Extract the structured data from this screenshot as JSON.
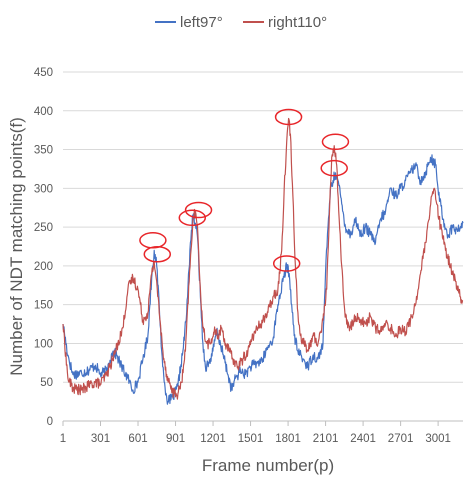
{
  "chart_data": {
    "type": "line",
    "title": "",
    "xlabel": "Frame number(p)",
    "ylabel": "Number of NDT matching points(f)",
    "xlim": [
      1,
      3200
    ],
    "ylim": [
      0,
      450
    ],
    "x_ticks": [
      "1",
      "301",
      "601",
      "901",
      "1201",
      "1501",
      "1801",
      "2101",
      "2401",
      "2701",
      "3001"
    ],
    "y_ticks": [
      "0",
      "50",
      "100",
      "150",
      "200",
      "250",
      "300",
      "350",
      "400",
      "450"
    ],
    "grid": true,
    "legend": "top",
    "series": [
      {
        "name": "left97°",
        "color": "#4472C4",
        "points": [
          [
            1,
            125
          ],
          [
            40,
            85
          ],
          [
            80,
            60
          ],
          [
            150,
            62
          ],
          [
            200,
            65
          ],
          [
            260,
            72
          ],
          [
            300,
            60
          ],
          [
            350,
            65
          ],
          [
            400,
            90
          ],
          [
            430,
            85
          ],
          [
            470,
            70
          ],
          [
            520,
            55
          ],
          [
            560,
            40
          ],
          [
            600,
            50
          ],
          [
            640,
            80
          ],
          [
            680,
            110
          ],
          [
            710,
            185
          ],
          [
            730,
            220
          ],
          [
            750,
            200
          ],
          [
            770,
            150
          ],
          [
            790,
            90
          ],
          [
            810,
            50
          ],
          [
            840,
            25
          ],
          [
            880,
            30
          ],
          [
            920,
            45
          ],
          [
            960,
            90
          ],
          [
            990,
            140
          ],
          [
            1020,
            230
          ],
          [
            1040,
            265
          ],
          [
            1060,
            255
          ],
          [
            1080,
            230
          ],
          [
            1100,
            160
          ],
          [
            1120,
            100
          ],
          [
            1140,
            70
          ],
          [
            1170,
            75
          ],
          [
            1200,
            90
          ],
          [
            1230,
            115
          ],
          [
            1260,
            100
          ],
          [
            1290,
            80
          ],
          [
            1320,
            60
          ],
          [
            1350,
            40
          ],
          [
            1380,
            55
          ],
          [
            1420,
            65
          ],
          [
            1460,
            60
          ],
          [
            1500,
            70
          ],
          [
            1560,
            75
          ],
          [
            1600,
            80
          ],
          [
            1640,
            95
          ],
          [
            1680,
            105
          ],
          [
            1720,
            150
          ],
          [
            1760,
            180
          ],
          [
            1790,
            200
          ],
          [
            1810,
            190
          ],
          [
            1830,
            150
          ],
          [
            1850,
            110
          ],
          [
            1880,
            90
          ],
          [
            1920,
            80
          ],
          [
            1960,
            70
          ],
          [
            2000,
            85
          ],
          [
            2040,
            80
          ],
          [
            2080,
            100
          ],
          [
            2100,
            190
          ],
          [
            2120,
            250
          ],
          [
            2140,
            300
          ],
          [
            2160,
            310
          ],
          [
            2180,
            320
          ],
          [
            2200,
            310
          ],
          [
            2230,
            280
          ],
          [
            2260,
            250
          ],
          [
            2300,
            240
          ],
          [
            2340,
            260
          ],
          [
            2380,
            240
          ],
          [
            2420,
            250
          ],
          [
            2460,
            240
          ],
          [
            2500,
            230
          ],
          [
            2540,
            260
          ],
          [
            2580,
            270
          ],
          [
            2620,
            300
          ],
          [
            2660,
            290
          ],
          [
            2700,
            300
          ],
          [
            2740,
            310
          ],
          [
            2780,
            320
          ],
          [
            2820,
            330
          ],
          [
            2860,
            310
          ],
          [
            2900,
            320
          ],
          [
            2940,
            340
          ],
          [
            2980,
            330
          ],
          [
            3000,
            300
          ],
          [
            3040,
            260
          ],
          [
            3080,
            240
          ],
          [
            3120,
            250
          ],
          [
            3160,
            245
          ],
          [
            3200,
            255
          ]
        ]
      },
      {
        "name": "right110°",
        "color": "#C0504D",
        "points": [
          [
            1,
            125
          ],
          [
            40,
            55
          ],
          [
            80,
            42
          ],
          [
            150,
            40
          ],
          [
            200,
            45
          ],
          [
            260,
            50
          ],
          [
            300,
            48
          ],
          [
            350,
            60
          ],
          [
            400,
            80
          ],
          [
            440,
            100
          ],
          [
            480,
            120
          ],
          [
            520,
            170
          ],
          [
            560,
            185
          ],
          [
            600,
            170
          ],
          [
            640,
            130
          ],
          [
            680,
            140
          ],
          [
            710,
            190
          ],
          [
            730,
            205
          ],
          [
            750,
            180
          ],
          [
            770,
            140
          ],
          [
            800,
            90
          ],
          [
            830,
            60
          ],
          [
            860,
            45
          ],
          [
            890,
            35
          ],
          [
            920,
            35
          ],
          [
            950,
            50
          ],
          [
            980,
            90
          ],
          [
            1010,
            180
          ],
          [
            1040,
            260
          ],
          [
            1060,
            270
          ],
          [
            1080,
            240
          ],
          [
            1100,
            170
          ],
          [
            1120,
            120
          ],
          [
            1150,
            100
          ],
          [
            1180,
            100
          ],
          [
            1210,
            115
          ],
          [
            1240,
            110
          ],
          [
            1270,
            120
          ],
          [
            1300,
            100
          ],
          [
            1330,
            90
          ],
          [
            1360,
            80
          ],
          [
            1400,
            70
          ],
          [
            1440,
            80
          ],
          [
            1480,
            90
          ],
          [
            1520,
            110
          ],
          [
            1560,
            120
          ],
          [
            1600,
            130
          ],
          [
            1640,
            140
          ],
          [
            1680,
            160
          ],
          [
            1720,
            170
          ],
          [
            1750,
            220
          ],
          [
            1770,
            300
          ],
          [
            1790,
            360
          ],
          [
            1805,
            390
          ],
          [
            1820,
            370
          ],
          [
            1840,
            290
          ],
          [
            1860,
            200
          ],
          [
            1880,
            140
          ],
          [
            1900,
            110
          ],
          [
            1930,
            100
          ],
          [
            1960,
            90
          ],
          [
            2000,
            110
          ],
          [
            2040,
            100
          ],
          [
            2080,
            130
          ],
          [
            2110,
            170
          ],
          [
            2130,
            260
          ],
          [
            2150,
            340
          ],
          [
            2170,
            355
          ],
          [
            2190,
            330
          ],
          [
            2210,
            260
          ],
          [
            2230,
            200
          ],
          [
            2250,
            150
          ],
          [
            2270,
            125
          ],
          [
            2300,
            120
          ],
          [
            2340,
            135
          ],
          [
            2380,
            130
          ],
          [
            2420,
            125
          ],
          [
            2460,
            135
          ],
          [
            2500,
            120
          ],
          [
            2540,
            115
          ],
          [
            2580,
            125
          ],
          [
            2620,
            120
          ],
          [
            2660,
            110
          ],
          [
            2700,
            120
          ],
          [
            2740,
            115
          ],
          [
            2780,
            130
          ],
          [
            2820,
            150
          ],
          [
            2860,
            190
          ],
          [
            2900,
            230
          ],
          [
            2930,
            260
          ],
          [
            2950,
            290
          ],
          [
            2970,
            300
          ],
          [
            2990,
            280
          ],
          [
            3020,
            250
          ],
          [
            3060,
            220
          ],
          [
            3100,
            200
          ],
          [
            3140,
            180
          ],
          [
            3180,
            160
          ],
          [
            3200,
            155
          ]
        ]
      }
    ],
    "annotations": [
      {
        "type": "circle",
        "x": 720,
        "y": 233,
        "color": "#E8262A"
      },
      {
        "type": "circle",
        "x": 755,
        "y": 215,
        "color": "#E8262A"
      },
      {
        "type": "circle",
        "x": 1035,
        "y": 262,
        "color": "#E8262A"
      },
      {
        "type": "circle",
        "x": 1085,
        "y": 272,
        "color": "#E8262A"
      },
      {
        "type": "circle",
        "x": 1805,
        "y": 392,
        "color": "#E8262A"
      },
      {
        "type": "circle",
        "x": 1790,
        "y": 203,
        "color": "#E8262A"
      },
      {
        "type": "circle",
        "x": 2180,
        "y": 360,
        "color": "#E8262A"
      },
      {
        "type": "circle",
        "x": 2170,
        "y": 326,
        "color": "#E8262A"
      }
    ]
  }
}
